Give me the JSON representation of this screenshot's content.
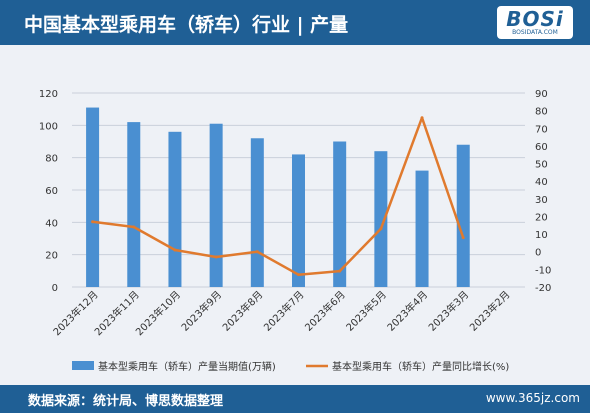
{
  "header": {
    "title": "中国基本型乘用车（轿车）行业 | 产量"
  },
  "logo": {
    "text": "BOSi",
    "subtext": "BOSIDATA.COM"
  },
  "footer": {
    "source": "数据来源：统计局、博思数据整理",
    "site": "www.365jz.com"
  },
  "chart_data": {
    "type": "bar",
    "categories": [
      "2023年12月",
      "2023年11月",
      "2023年10月",
      "2023年9月",
      "2023年8月",
      "2023年7月",
      "2023年6月",
      "2023年5月",
      "2023年4月",
      "2023年3月",
      "2023年2月"
    ],
    "series": [
      {
        "name": "基本型乘用车（轿车）产量当期值(万辆)",
        "type": "bar",
        "axis": "left",
        "color": "#4a8fd1",
        "values": [
          111,
          102,
          96,
          101,
          92,
          82,
          90,
          84,
          72,
          88,
          null
        ]
      },
      {
        "name": "基本型乘用车（轿车）产量同比增长(%)",
        "type": "line",
        "axis": "right",
        "color": "#e07a2e",
        "values": [
          17,
          14,
          1,
          -3,
          0,
          -13,
          -11,
          13,
          76,
          8,
          null
        ]
      }
    ],
    "y_left": {
      "min": 0,
      "max": 120,
      "ticks": [
        "0",
        "20",
        "40",
        "60",
        "80",
        "100",
        "120"
      ]
    },
    "y_right": {
      "min": -20,
      "max": 90,
      "ticks": [
        "-20",
        "-10",
        "0",
        "10",
        "20",
        "30",
        "40",
        "50",
        "60",
        "70",
        "80",
        "90"
      ]
    },
    "grid": true,
    "legend": "bottom"
  }
}
